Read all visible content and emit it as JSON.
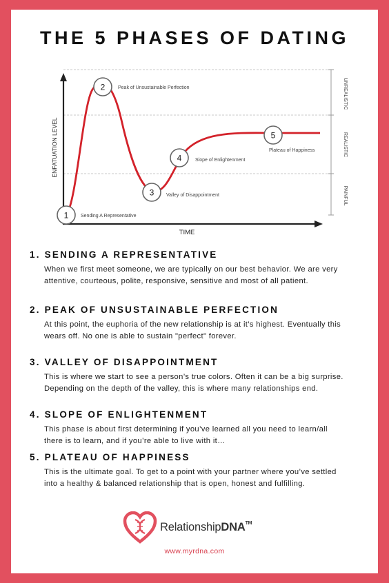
{
  "title": "THE 5 PHASES OF DATING",
  "chart": {
    "ylabel": "ENFATUATION LEVEL",
    "xlabel": "TIME",
    "zones": [
      "UNREALISTIC",
      "REALISTIC",
      "PAINFUL"
    ],
    "curve_color": "#d3222a",
    "points": [
      {
        "num": "1",
        "label": "Sending A Representative"
      },
      {
        "num": "2",
        "label": "Peak of Unsustainable Perfection"
      },
      {
        "num": "3",
        "label": "Valley of Disappointment"
      },
      {
        "num": "4",
        "label": "Slope of Enlightenment"
      },
      {
        "num": "5",
        "label": "Plateau of Happiness"
      }
    ]
  },
  "phases": [
    {
      "num": "1.",
      "heading": "SENDING A REPRESENTATIVE",
      "body": "When we first meet someone, we are typically on our best behavior. We are very attentive, courteous, polite, responsive, sensitive and most of all patient."
    },
    {
      "num": "2.",
      "heading": "PEAK OF UNSUSTAINABLE PERFECTION",
      "body": "At this point, the euphoria of the new relationship is at it’s highest. Eventually this wears off.  No one is able to sustain \"perfect\" forever."
    },
    {
      "num": "3.",
      "heading": "VALLEY OF DISAPPOINTMENT",
      "body": "This is where we start to see a person’s true colors.  Often it can be a big surprise.  Depending on the depth of the valley, this is where many relationships end."
    },
    {
      "num": "4.",
      "heading": "SLOPE OF ENLIGHTENMENT",
      "body": "This phase is about first determining if you’ve learned all you need to learn/all there is to learn, and if you’re able to live with it…"
    },
    {
      "num": "5.",
      "heading": "PLATEAU OF HAPPINESS",
      "body": "This is the ultimate goal.  To get to a point with your partner where you’ve settled into a healthy & balanced relationship that is open, honest and fulfilling."
    }
  ],
  "brand": {
    "name_plain": "Relationship",
    "name_bold": "DNA",
    "tm": "TM",
    "url": "www.myrdna.com",
    "color": "#e2505f"
  }
}
